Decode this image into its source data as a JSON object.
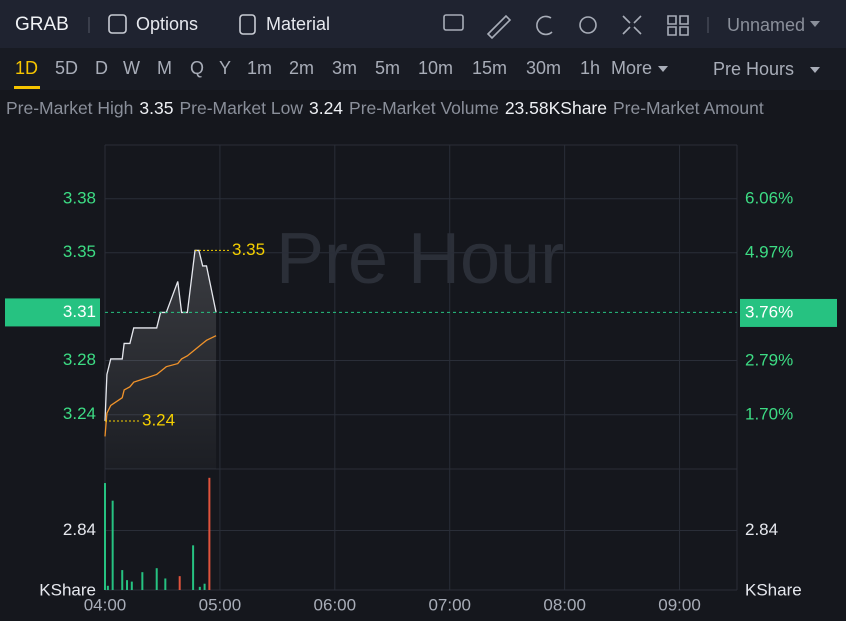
{
  "toolbar": {
    "symbol": "GRAB",
    "items": [
      "Options",
      "Material"
    ],
    "layout": "Unnamed"
  },
  "periods": [
    "1D",
    "5D",
    "D",
    "W",
    "M",
    "Q",
    "Y",
    "1m",
    "2m",
    "3m",
    "5m",
    "10m",
    "15m",
    "30m",
    "1h",
    "More"
  ],
  "selected_period": 0,
  "session": "Pre Hours",
  "stats": [
    {
      "label": "Pre-Market High",
      "value": "3.35"
    },
    {
      "label": "Pre-Market Low",
      "value": "3.24"
    },
    {
      "label": "Pre-Market Volume",
      "value": "23.58KShare"
    },
    {
      "label": "Pre-Market Amount"
    }
  ],
  "chart_data": {
    "type": "line",
    "watermark": "Pre Hour",
    "x": [
      240,
      241,
      243,
      249,
      250,
      253,
      255,
      267,
      269,
      272,
      278,
      280,
      283,
      285,
      287,
      289,
      291,
      293,
      298
    ],
    "xlim": [
      240,
      570
    ],
    "xticks": [
      {
        "value": 240,
        "label": "04:00"
      },
      {
        "value": 300,
        "label": "05:00"
      },
      {
        "value": 360,
        "label": "06:00"
      },
      {
        "value": 420,
        "label": "07:00"
      },
      {
        "value": 480,
        "label": "08:00"
      },
      {
        "value": 540,
        "label": "09:00"
      }
    ],
    "ylim": [
      3.209,
      3.418
    ],
    "yticks": [
      {
        "value": 3.3833,
        "label": "3.38"
      },
      {
        "value": 3.3485,
        "label": "3.35"
      },
      {
        "value": 3.279,
        "label": "3.28"
      },
      {
        "value": 3.244,
        "label": "3.24"
      }
    ],
    "y2lim": [
      0.61,
      7.15
    ],
    "y2ticks": [
      {
        "value": 6.06,
        "label": "6.06%"
      },
      {
        "value": 4.97,
        "label": "4.97%"
      },
      {
        "value": 2.79,
        "label": "2.79%"
      },
      {
        "value": 1.7,
        "label": "1.70%"
      }
    ],
    "grid": true,
    "series": [
      {
        "color": "#e6e8ee",
        "values": [
          3.24,
          3.27,
          3.28,
          3.28,
          3.29,
          3.29,
          3.3,
          3.3,
          3.31,
          3.31,
          3.33,
          3.31,
          3.31,
          3.33,
          3.35,
          3.35,
          3.34,
          3.34,
          3.31
        ]
      },
      {
        "color": "#f0932b",
        "values": [
          3.23,
          3.245,
          3.25,
          3.255,
          3.26,
          3.262,
          3.265,
          3.27,
          3.272,
          3.275,
          3.277,
          3.28,
          3.282,
          3.284,
          3.286,
          3.288,
          3.29,
          3.292,
          3.295
        ]
      }
    ],
    "current": {
      "value": 3.31,
      "pct": {
        "value": 3.76,
        "label": "3.76%"
      },
      "color": "#26c281"
    },
    "annotations": [
      {
        "x": 287,
        "value": 3.35
      },
      {
        "x": 240,
        "value": 3.24
      }
    ],
    "volume": {
      "x": [
        240,
        241.5,
        244,
        249,
        251.5,
        254,
        259.5,
        267,
        271.5,
        279,
        286,
        289.5,
        292,
        294.5
      ],
      "values": [
        5.1,
        0.2,
        4.26,
        0.95,
        0.47,
        0.4,
        0.85,
        1.04,
        0.55,
        0.66,
        2.13,
        0.15,
        0.3,
        5.35
      ],
      "colors": [
        "#26c281",
        "#26c281",
        "#26c281",
        "#26c281",
        "#26c281",
        "#26c281",
        "#26c281",
        "#26c281",
        "#26c281",
        "#e0533d",
        "#26c281",
        "#26c281",
        "#26c281",
        "#e0533d"
      ],
      "ylim": [
        0,
        5.77
      ],
      "yticks": [
        2.84
      ],
      "unit": "KShare"
    }
  }
}
